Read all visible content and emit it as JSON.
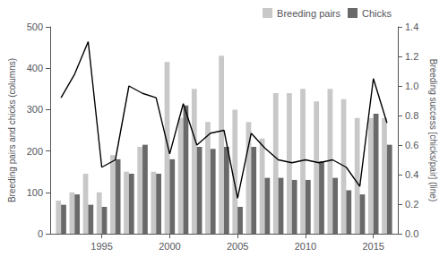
{
  "chart_data": {
    "type": "bar",
    "x": [
      1992,
      1993,
      1994,
      1995,
      1996,
      1997,
      1998,
      1999,
      2000,
      2001,
      2002,
      2003,
      2004,
      2005,
      2006,
      2007,
      2008,
      2009,
      2010,
      2011,
      2012,
      2013,
      2014,
      2015,
      2016
    ],
    "series": [
      {
        "name": "Breeding pairs",
        "type": "bar",
        "color": "#c8c8c8",
        "values": [
          80,
          100,
          145,
          100,
          190,
          150,
          210,
          150,
          415,
          280,
          350,
          270,
          430,
          300,
          270,
          230,
          340,
          340,
          350,
          320,
          350,
          325,
          280,
          280,
          280
        ]
      },
      {
        "name": "Chicks",
        "type": "bar",
        "color": "#696969",
        "values": [
          70,
          95,
          70,
          65,
          180,
          145,
          215,
          145,
          180,
          310,
          210,
          205,
          210,
          65,
          210,
          135,
          135,
          130,
          130,
          175,
          135,
          105,
          95,
          290,
          215
        ]
      },
      {
        "type": "line",
        "axis": "y2",
        "color": "#000000",
        "values": [
          0.92,
          1.08,
          1.3,
          0.45,
          0.5,
          1.0,
          0.95,
          0.92,
          0.54,
          0.88,
          0.6,
          0.68,
          0.7,
          0.24,
          0.68,
          0.58,
          0.5,
          0.48,
          0.5,
          0.48,
          0.5,
          0.45,
          0.32,
          1.05,
          0.75
        ]
      }
    ],
    "ylabel": "Breeding pairs and chicks (columns)",
    "y2label": "Breeding success [chicks/pair] (line)",
    "xlim": [
      1991.2,
      2016.8
    ],
    "xticks": [
      1995,
      2000,
      2005,
      2010,
      2015
    ],
    "ylim": [
      0,
      500
    ],
    "yticks": [
      0,
      100,
      200,
      300,
      400,
      500
    ],
    "y2lim": [
      0,
      1.4
    ],
    "y2ticks": [
      {
        "value": 0.0,
        "label": "0.0"
      },
      0.2,
      0.4,
      0.6,
      0.8,
      {
        "value": 1.0,
        "label": "1.0"
      },
      1.2,
      1.4
    ],
    "legend": "upper right",
    "grid": false
  }
}
